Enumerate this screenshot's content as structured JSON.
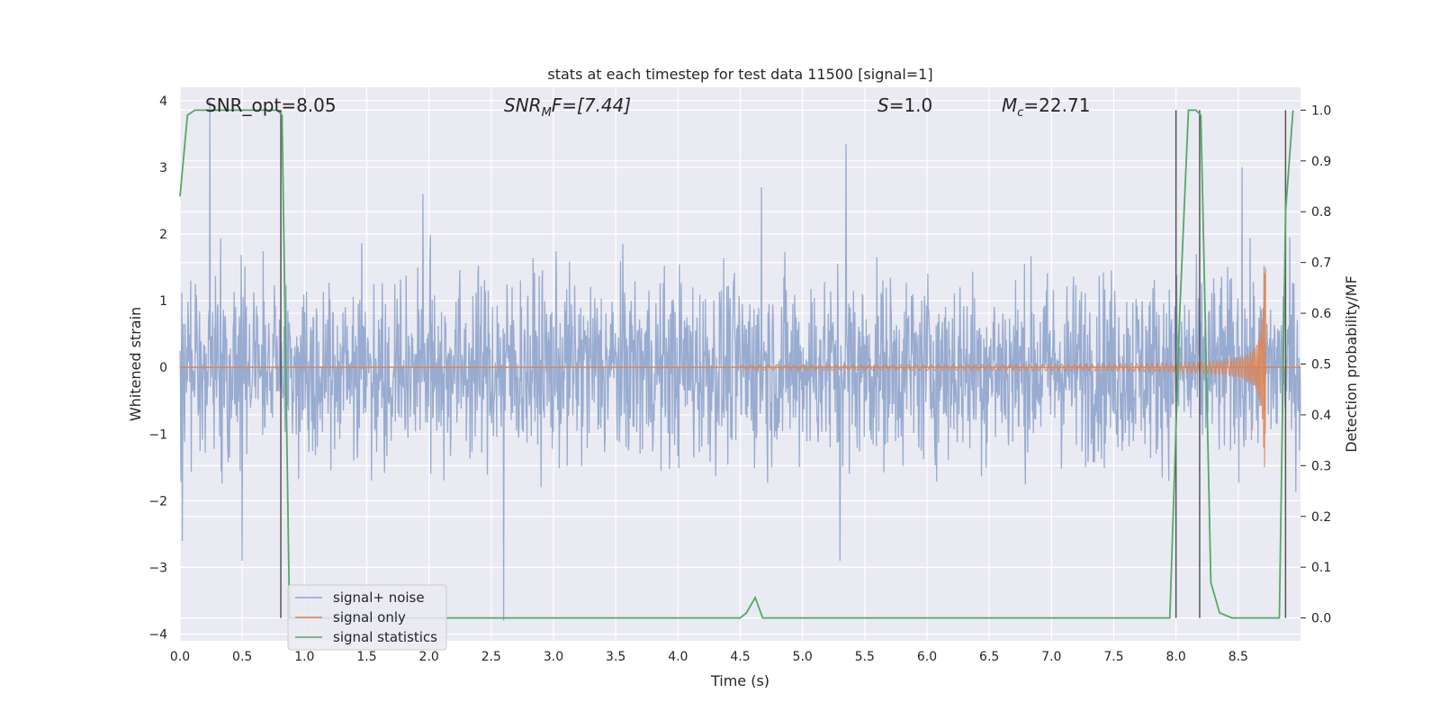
{
  "chart_data": {
    "type": "line",
    "title": "stats at each timestep for test data 11500 [signal=1]",
    "xlabel": "Time (s)",
    "ylabel": "Whitened strain",
    "y2label": "Detection probability/MF",
    "xlim": [
      0,
      9.0
    ],
    "ylim": [
      -4.1,
      4.2
    ],
    "y2lim": [
      -0.045,
      1.045
    ],
    "xticks": [
      "0.0",
      "0.5",
      "1.0",
      "1.5",
      "2.0",
      "2.5",
      "3.0",
      "3.5",
      "4.0",
      "4.5",
      "5.0",
      "5.5",
      "6.0",
      "6.5",
      "7.0",
      "7.5",
      "8.0",
      "8.5"
    ],
    "yticks": [
      "4",
      "3",
      "2",
      "1",
      "0",
      "−1",
      "−2",
      "−3",
      "−4"
    ],
    "y2ticks": [
      "1.0",
      "0.9",
      "0.8",
      "0.7",
      "0.6",
      "0.5",
      "0.4",
      "0.3",
      "0.2",
      "0.1",
      "0.0"
    ],
    "grid": true,
    "legend_position": "lower-left",
    "annotations": {
      "snr_opt": "SNR_opt=8.05",
      "snr_mf_main": "SNR",
      "snr_mf_sub": "M",
      "snr_mf_rest": "F=[7.44]",
      "s_main": "S",
      "s_rest": "=1.0",
      "mc_main": "M",
      "mc_sub": "c",
      "mc_rest": "=22.71"
    },
    "vertical_lines_x": [
      0.81,
      8.0,
      8.19,
      8.88
    ],
    "series": [
      {
        "name": "signal+ noise",
        "color": "#8fa4cc",
        "axis": "left",
        "description_values": "dense whitened noise, amplitude ~ ±1.5 with peaks to ±2.5, extremes 4.0 (t=0.24) and -3.8 (t=2.6)",
        "envelope_min": -2.0,
        "envelope_max": 2.0,
        "spikes": [
          [
            0.24,
            4.0
          ],
          [
            2.6,
            -3.8
          ],
          [
            5.35,
            3.35
          ],
          [
            1.95,
            2.6
          ],
          [
            4.67,
            2.7
          ],
          [
            8.53,
            3.0
          ],
          [
            0.5,
            -2.9
          ],
          [
            5.3,
            -2.9
          ],
          [
            0.02,
            -2.6
          ]
        ]
      },
      {
        "name": "signal only",
        "color": "#dd8452",
        "axis": "left",
        "chirp": {
          "t_start": 4.5,
          "t_merge": 8.72,
          "amp_start": 0.02,
          "amp_end": 1.5
        }
      },
      {
        "name": "signal statistics",
        "color": "#55a868",
        "axis": "right",
        "x": [
          0.0,
          0.06,
          0.12,
          0.78,
          0.82,
          0.88,
          4.5,
          4.55,
          4.62,
          4.68,
          7.95,
          8.03,
          8.1,
          8.16,
          8.2,
          8.28,
          8.35,
          8.45,
          8.83,
          8.88,
          8.94
        ],
        "y": [
          0.83,
          0.99,
          1.0,
          1.0,
          0.99,
          0.0,
          0.0,
          0.01,
          0.04,
          0.0,
          0.0,
          0.6,
          1.0,
          1.0,
          0.99,
          0.07,
          0.01,
          0.0,
          0.0,
          0.8,
          1.0
        ]
      }
    ]
  }
}
